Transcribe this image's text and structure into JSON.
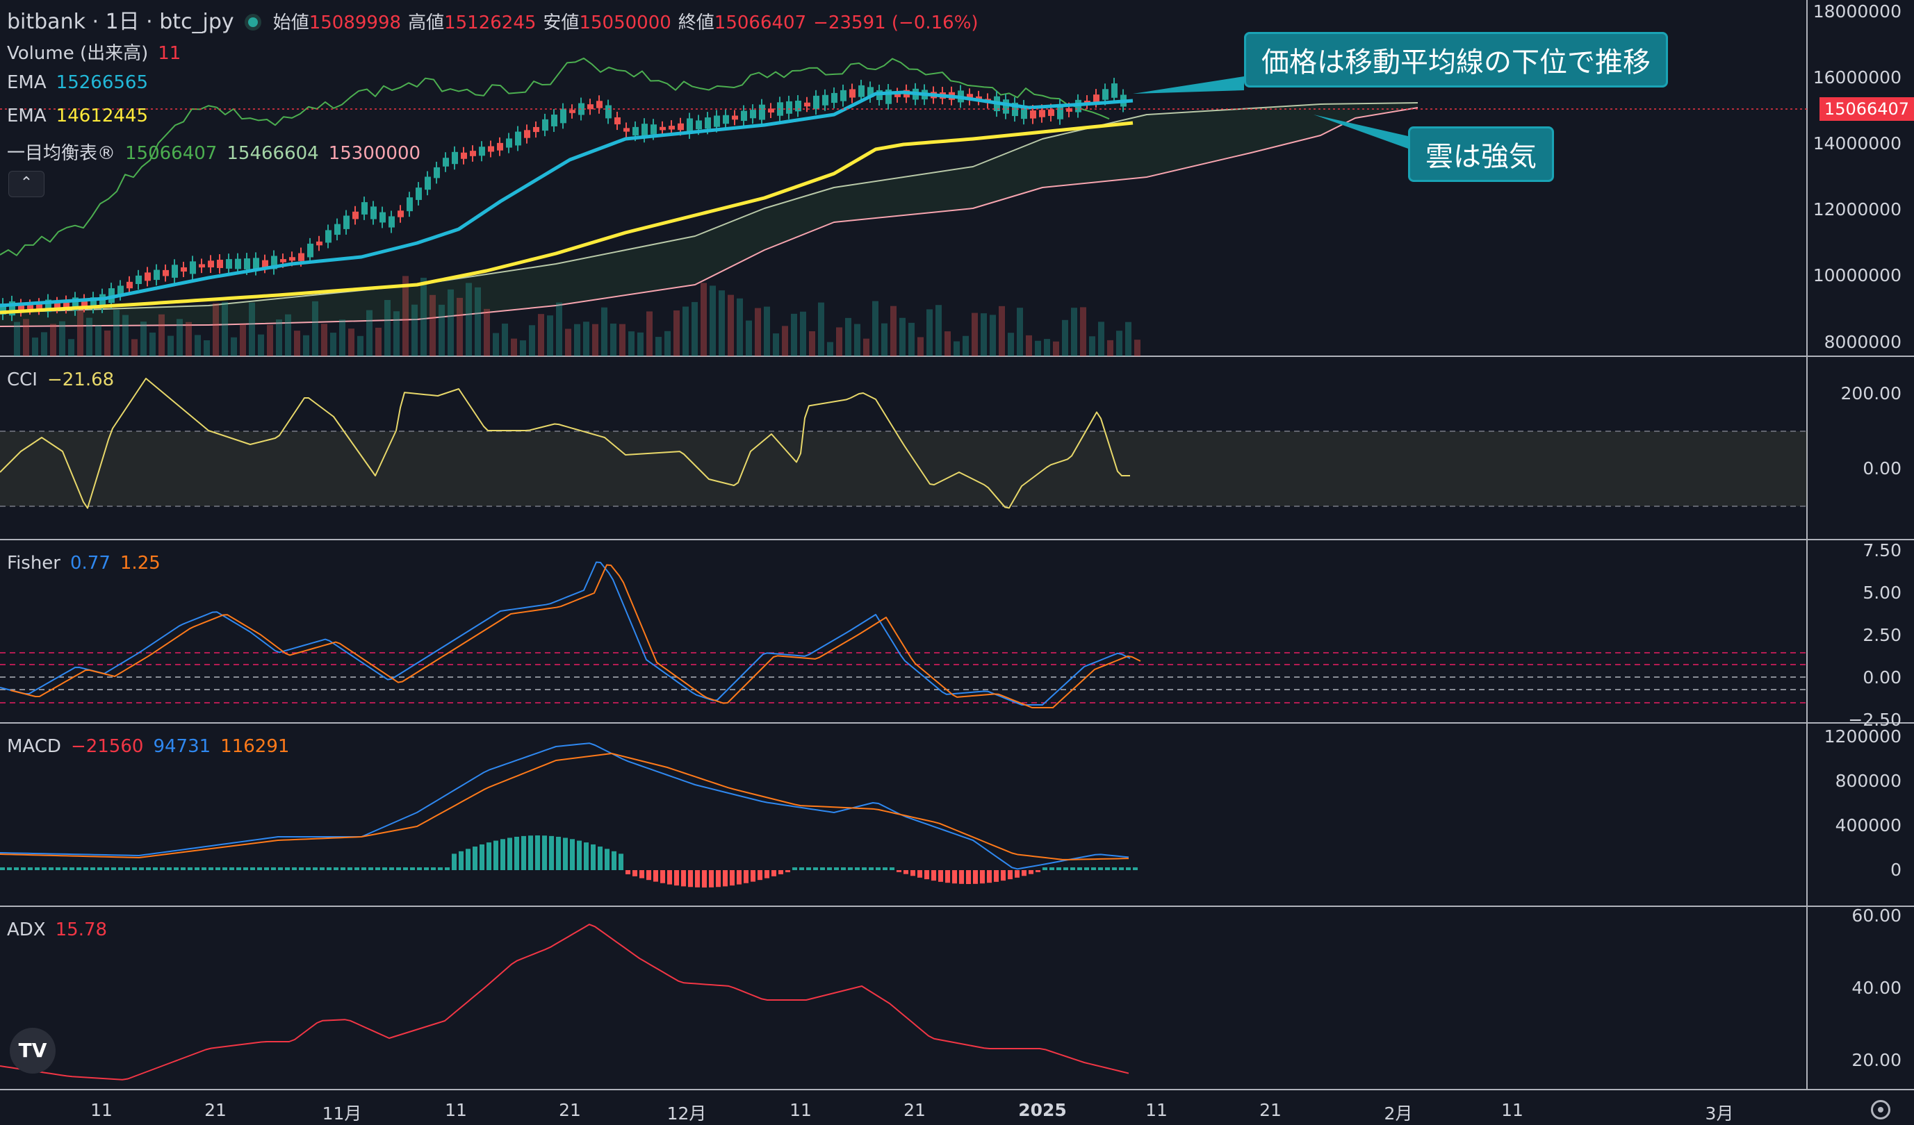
{
  "header": {
    "symbol": "bitbank · 1日 · btc_jpy",
    "open_label": "始値",
    "open_value": "15089998",
    "high_label": "高値",
    "high_value": "15126245",
    "low_label": "安値",
    "low_value": "15050000",
    "close_label": "終値",
    "close_value": "15066407",
    "change": "−23591 (−0.16%)"
  },
  "legend": {
    "volume_label": "Volume (出来高)",
    "volume_value": "11",
    "ema1_label": "EMA",
    "ema1_value": "15266565",
    "ema2_label": "EMA",
    "ema2_value": "14612445",
    "ichimoku_label": "一目均衡表®",
    "ichimoku_v1": "15066407",
    "ichimoku_v2": "15466604",
    "ichimoku_v3": "15300000",
    "collapse_icon": "chevron-up-icon"
  },
  "price_axis": {
    "labels": [
      "18000000",
      "16000000",
      "14000000",
      "12000000",
      "10000000",
      "8000000"
    ],
    "last_price_tag": "15066407"
  },
  "cci": {
    "label": "CCI",
    "value": "−21.68",
    "axis": [
      "200.00",
      "0.00"
    ]
  },
  "fisher": {
    "label": "Fisher",
    "value1": "0.77",
    "value2": "1.25",
    "axis": [
      "7.50",
      "5.00",
      "2.50",
      "0.00",
      "−2.50"
    ]
  },
  "macd": {
    "label": "MACD",
    "value1": "−21560",
    "value2": "94731",
    "value3": "116291",
    "axis": [
      "1200000",
      "800000",
      "400000",
      "0"
    ]
  },
  "adx": {
    "label": "ADX",
    "value": "15.78",
    "axis": [
      "60.00",
      "40.00",
      "20.00"
    ]
  },
  "time_axis": [
    "11",
    "21",
    "11月",
    "11",
    "21",
    "12月",
    "11",
    "21",
    "2025",
    "11",
    "21",
    "2月",
    "11",
    "3月"
  ],
  "annotations": {
    "callout1": "価格は移動平均線の下位で推移",
    "callout2": "雲は強気"
  },
  "colors": {
    "background": "#131722",
    "up": "#26a69a",
    "down": "#ef5350",
    "ema_fast": "#22b8d8",
    "ema_slow": "#ffeb3b",
    "cci_line": "#e8d86a",
    "fisher_1": "#2f88f0",
    "fisher_2": "#ff7a1a",
    "macd_line": "#2f88f0",
    "signal_line": "#ff7a1a",
    "adx_line": "#f23645",
    "callout_bg": "#127a8a"
  },
  "logo_text": "TV"
}
